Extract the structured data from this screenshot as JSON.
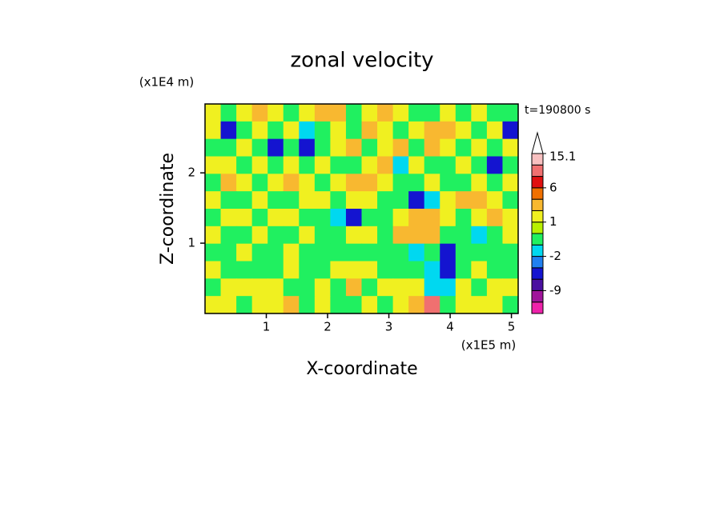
{
  "chart_data": {
    "type": "contour",
    "title": "zonal velocity",
    "x_label": "X-coordinate",
    "y_label": "Z-coordinate",
    "x_multiplier": "(x1E5 m)",
    "y_multiplier": "(x1E4 m)",
    "time_label": "t=190800 s",
    "xlim": [
      0,
      5.11
    ],
    "ylim": [
      0,
      2.98
    ],
    "xticks": [
      1,
      2,
      3,
      4,
      5
    ],
    "yticks": [
      1,
      2
    ],
    "z": [
      [
        1.5,
        -0.5,
        1.5,
        3,
        1.5,
        -0.5,
        1.5,
        3,
        3,
        -0.5,
        1.5,
        3,
        1.5,
        -0.5,
        -0.5,
        1.5,
        -0.5,
        1.5,
        -0.5,
        -0.5
      ],
      [
        1.5,
        -5,
        -0.5,
        1.5,
        -0.5,
        1.5,
        -1.5,
        -0.5,
        1.5,
        -0.5,
        3,
        1.5,
        -0.5,
        1.5,
        3,
        3,
        1.5,
        -0.5,
        1.5,
        -5
      ],
      [
        -0.5,
        -0.5,
        1.5,
        -0.5,
        -5,
        -0.5,
        -5,
        -0.5,
        1.5,
        3,
        -0.5,
        1.5,
        3,
        -0.5,
        3,
        1.5,
        -0.5,
        1.5,
        -0.5,
        1.5
      ],
      [
        1.5,
        1.5,
        -0.5,
        1.5,
        -0.5,
        1.5,
        -0.5,
        1.5,
        -0.5,
        -0.5,
        1.5,
        3,
        -1.5,
        1.5,
        -0.5,
        -0.5,
        1.5,
        -0.5,
        -5,
        -0.5
      ],
      [
        -0.5,
        3,
        1.5,
        -0.5,
        1.5,
        3,
        1.5,
        -0.5,
        1.5,
        3,
        3,
        1.5,
        -0.5,
        -0.5,
        1.5,
        -0.5,
        -0.5,
        1.5,
        -0.5,
        1.5
      ],
      [
        1.5,
        -0.5,
        -0.5,
        1.5,
        -0.5,
        -0.5,
        1.5,
        1.5,
        -0.5,
        1.5,
        1.5,
        -0.5,
        -0.5,
        -5,
        -1.5,
        1.5,
        3,
        3,
        1.5,
        -0.5
      ],
      [
        -0.5,
        1.5,
        1.5,
        -0.5,
        1.5,
        1.5,
        -0.5,
        -0.5,
        -1.5,
        -5,
        -0.5,
        -0.5,
        1.5,
        3,
        3,
        1.5,
        -0.5,
        1.5,
        3,
        1.5
      ],
      [
        1.5,
        -0.5,
        -0.5,
        1.5,
        -0.5,
        -0.5,
        1.5,
        -0.5,
        -0.5,
        1.5,
        1.5,
        -0.5,
        3,
        3,
        3,
        -0.5,
        -0.5,
        -1.5,
        -0.5,
        1.5
      ],
      [
        -0.5,
        -0.5,
        1.5,
        -0.5,
        -0.5,
        1.5,
        -0.5,
        -0.5,
        -0.5,
        -0.5,
        -0.5,
        -0.5,
        -0.5,
        -1.5,
        -0.5,
        -5,
        -0.5,
        -0.5,
        -0.5,
        -0.5
      ],
      [
        1.5,
        -0.5,
        -0.5,
        -0.5,
        -0.5,
        1.5,
        -0.5,
        -0.5,
        1.5,
        1.5,
        1.5,
        -0.5,
        -0.5,
        -0.5,
        -1.5,
        -5,
        -0.5,
        1.5,
        -0.5,
        -0.5
      ],
      [
        -0.5,
        1.5,
        1.5,
        1.5,
        1.5,
        -0.5,
        -0.5,
        1.5,
        -0.5,
        3,
        -0.5,
        1.5,
        1.5,
        1.5,
        -1.5,
        -1.5,
        1.5,
        -0.5,
        1.5,
        1.5
      ],
      [
        1.5,
        1.5,
        -0.5,
        1.5,
        1.5,
        3,
        -0.5,
        1.5,
        -0.5,
        -0.5,
        1.5,
        -0.5,
        1.5,
        3,
        9,
        -0.5,
        1.5,
        1.5,
        1.5,
        -0.5
      ]
    ],
    "colorbar": {
      "bounds": [
        -15,
        -12,
        -9,
        -6,
        -4,
        -2,
        -1,
        0,
        1,
        2,
        4,
        6,
        9,
        12,
        15.1
      ],
      "colors": [
        "#ee22aa",
        "#a0149b",
        "#4a10a0",
        "#1414d0",
        "#2080f0",
        "#00d8f0",
        "#20f060",
        "#b8f000",
        "#f0f020",
        "#f8b830",
        "#f07000",
        "#e01010",
        "#f07070",
        "#f8c0c0"
      ],
      "ticks": [
        -9,
        -2,
        1,
        6,
        15.1
      ]
    }
  }
}
